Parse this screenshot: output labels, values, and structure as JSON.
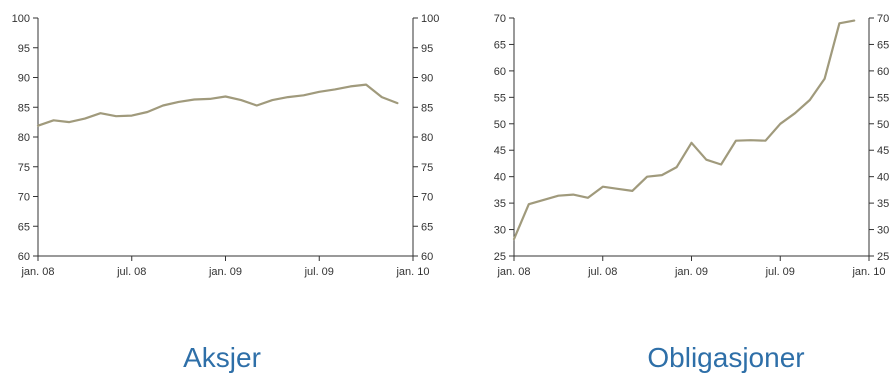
{
  "chart_data": [
    {
      "type": "line",
      "title": "Aksjer",
      "xlabel": "",
      "ylabel": "",
      "ylim": [
        60,
        100
      ],
      "y_ticks": [
        "100",
        "95",
        "90",
        "85",
        "80",
        "75",
        "70",
        "65",
        "60"
      ],
      "y_tick_values": [
        100,
        95,
        90,
        85,
        80,
        75,
        70,
        65,
        60
      ],
      "x_ticks": [
        "jan. 08",
        "jul. 08",
        "jan. 09",
        "jul. 09",
        "jan. 10"
      ],
      "x_tick_values": [
        0,
        6,
        12,
        18,
        24
      ],
      "xlim": [
        0,
        24
      ],
      "dual_y_axis": true,
      "grid": false,
      "color": "#a09a7c",
      "series": [
        {
          "x": [
            0,
            1,
            2,
            3,
            4,
            5,
            6,
            7,
            8,
            9,
            10,
            11,
            12,
            13,
            14,
            15,
            16,
            17,
            18,
            19,
            20,
            21,
            22,
            23
          ],
          "values": [
            81.9,
            82.8,
            82.5,
            83.1,
            84.0,
            83.5,
            83.6,
            84.2,
            85.3,
            85.9,
            86.3,
            86.4,
            86.8,
            86.2,
            85.3,
            86.2,
            86.7,
            87.0,
            87.6,
            88.0,
            88.5,
            88.8,
            86.7,
            85.7
          ]
        }
      ]
    },
    {
      "type": "line",
      "title": "Obligasjoner",
      "xlabel": "",
      "ylabel": "",
      "ylim": [
        25,
        70
      ],
      "y_ticks": [
        "70",
        "65",
        "60",
        "55",
        "50",
        "45",
        "40",
        "35",
        "30",
        "25"
      ],
      "y_tick_values": [
        70,
        65,
        60,
        55,
        50,
        45,
        40,
        35,
        30,
        25
      ],
      "x_ticks": [
        "jan. 08",
        "jul. 08",
        "jan. 09",
        "jul. 09",
        "jan. 10"
      ],
      "x_tick_values": [
        0,
        6,
        12,
        18,
        24
      ],
      "xlim": [
        0,
        24
      ],
      "dual_y_axis": true,
      "grid": false,
      "color": "#a09a7c",
      "series": [
        {
          "x": [
            0,
            1,
            2,
            3,
            4,
            5,
            6,
            7,
            8,
            9,
            10,
            11,
            12,
            13,
            14,
            15,
            16,
            17,
            18,
            19,
            20,
            21,
            22,
            23
          ],
          "values": [
            28.2,
            34.8,
            35.6,
            36.4,
            36.6,
            36.0,
            38.1,
            37.7,
            37.3,
            40.0,
            40.3,
            41.8,
            46.4,
            43.2,
            42.3,
            46.8,
            46.9,
            46.8,
            50.0,
            52.0,
            54.5,
            58.5,
            69.0,
            69.5
          ]
        }
      ]
    }
  ]
}
